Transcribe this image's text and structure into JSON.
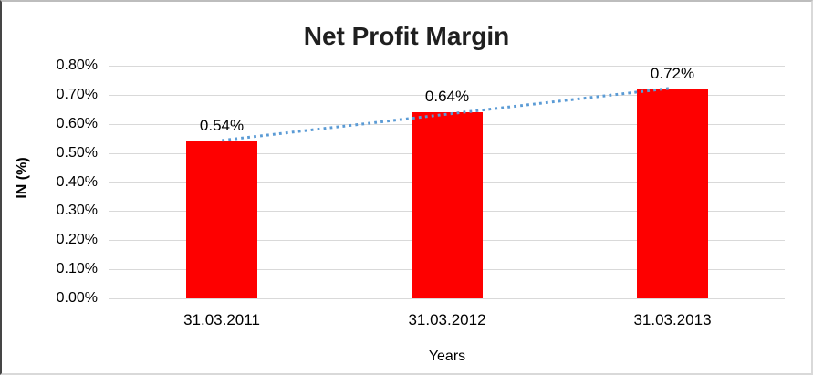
{
  "chart_data": {
    "type": "bar",
    "title": "Net Profit Margin",
    "categories": [
      "31.03.2011",
      "31.03.2012",
      "31.03.2013"
    ],
    "values": [
      0.54,
      0.64,
      0.72
    ],
    "data_labels": [
      "0.54%",
      "0.64%",
      "0.72%"
    ],
    "xlabel": "Years",
    "ylabel": "IN (%)",
    "ylim": [
      0,
      0.8
    ],
    "ytick_step": 0.1,
    "ytick_labels": [
      "0.00%",
      "0.10%",
      "0.20%",
      "0.30%",
      "0.40%",
      "0.50%",
      "0.60%",
      "0.70%",
      "0.80%"
    ],
    "grid": true,
    "legend_position": "none",
    "bar_color": "#fe0000",
    "gridline_color": "#d9d9d9",
    "text_color": "#000000",
    "title_color": "#1f1f1f",
    "trendline": {
      "type": "linear",
      "style": "dotted",
      "color": "#5b9bd5"
    }
  }
}
